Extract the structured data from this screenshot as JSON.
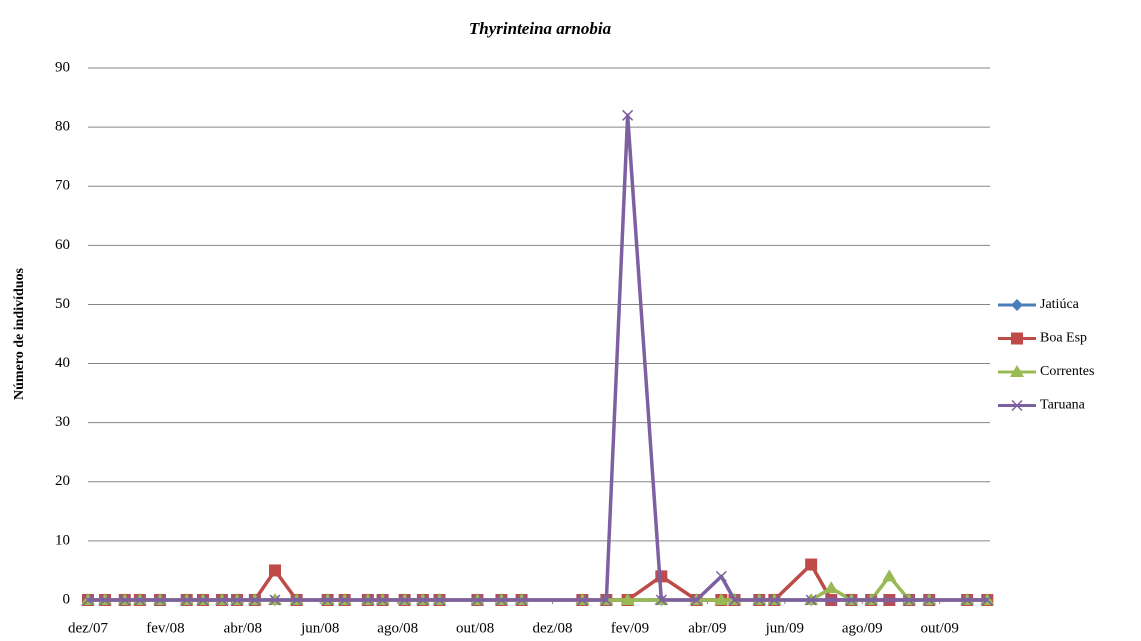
{
  "chart_data": {
    "type": "line",
    "title": "Thyrinteina arnobia",
    "y_label": "Número de indivíduos",
    "x": [
      0,
      0.44,
      0.95,
      1.34,
      1.86,
      2.55,
      2.97,
      3.46,
      3.85,
      4.31,
      4.83,
      5.39,
      6.19,
      6.63,
      7.23,
      7.61,
      8.18,
      8.65,
      9.08,
      10.06,
      10.68,
      11.2,
      12.77,
      13.39,
      13.94,
      14.81,
      15.72,
      16.36,
      16.7,
      17.34,
      17.73,
      18.68,
      19.2,
      19.72,
      20.23,
      20.7,
      21.21,
      21.73,
      22.71,
      23.23
    ],
    "series": [
      {
        "name": "Jatiúca",
        "color": "#4a7ebb",
        "marker": "diamond",
        "values": [
          0,
          0,
          0,
          0,
          0,
          0,
          0,
          0,
          0,
          0,
          0,
          0,
          0,
          0,
          0,
          0,
          0,
          0,
          0,
          0,
          0,
          0,
          0,
          0,
          0,
          0,
          0,
          0,
          0,
          0,
          0,
          0,
          0,
          0,
          0,
          0,
          0,
          0,
          0,
          0
        ]
      },
      {
        "name": "Boa Esp",
        "color": "#be4b48",
        "marker": "square",
        "values": [
          0,
          0,
          0,
          0,
          0,
          0,
          0,
          0,
          0,
          0,
          5,
          0,
          0,
          0,
          0,
          0,
          0,
          0,
          0,
          0,
          0,
          0,
          0,
          0,
          0,
          4,
          0,
          0,
          0,
          0,
          0,
          6,
          0,
          0,
          0,
          0,
          0,
          0,
          0,
          0
        ]
      },
      {
        "name": "Correntes",
        "color": "#98b954",
        "marker": "triangle",
        "values": [
          0,
          0,
          0,
          0,
          0,
          0,
          0,
          0,
          0,
          0,
          0,
          0,
          0,
          0,
          0,
          0,
          0,
          0,
          0,
          0,
          0,
          0,
          0,
          0,
          0,
          0,
          0,
          0,
          0,
          0,
          0,
          0,
          2,
          0,
          0,
          4,
          0,
          0,
          0,
          0
        ]
      },
      {
        "name": "Taruana",
        "color": "#7d60a0",
        "marker": "x",
        "values": [
          0,
          0,
          0,
          0,
          0,
          0,
          0,
          0,
          0,
          0,
          0,
          0,
          0,
          0,
          0,
          0,
          0,
          0,
          0,
          0,
          0,
          0,
          0,
          0,
          82,
          0,
          0,
          4,
          0,
          0,
          0,
          0,
          0,
          0,
          0,
          0,
          0,
          0,
          0,
          0
        ]
      }
    ],
    "xlim": [
      0,
      23.3
    ],
    "xticks": [
      {
        "value": 0,
        "label": "dez/07"
      },
      {
        "value": 2,
        "label": "fev/08"
      },
      {
        "value": 4,
        "label": "abr/08"
      },
      {
        "value": 6,
        "label": "jun/08"
      },
      {
        "value": 8,
        "label": "ago/08"
      },
      {
        "value": 10,
        "label": "out/08"
      },
      {
        "value": 12,
        "label": "dez/08"
      },
      {
        "value": 14,
        "label": "fev/09"
      },
      {
        "value": 16,
        "label": "abr/09"
      },
      {
        "value": 18,
        "label": "jun/09"
      },
      {
        "value": 20,
        "label": "ago/09"
      },
      {
        "value": 22,
        "label": "out/09"
      }
    ],
    "ylim": [
      0,
      90
    ],
    "yticks": [
      0,
      10,
      20,
      30,
      40,
      50,
      60,
      70,
      80,
      90
    ],
    "grid": true,
    "legend": "right"
  }
}
